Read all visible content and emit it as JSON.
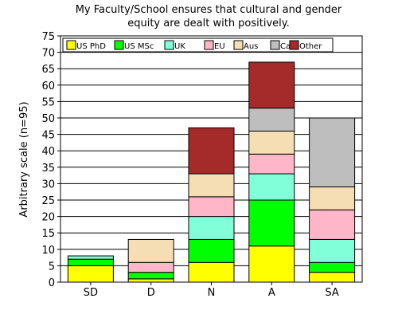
{
  "chart_data": {
    "type": "bar",
    "stacked": true,
    "title_lines": [
      "My Faculty/School ensures that cultural and gender",
      "equity are dealt with positively."
    ],
    "xlabel": "",
    "ylabel": "Arbitrary scale (n=95)",
    "ylim": [
      0,
      75
    ],
    "ytick_step": 5,
    "grid": true,
    "legend_position": "top-left",
    "categories": [
      "SD",
      "D",
      "N",
      "A",
      "SA"
    ],
    "series": [
      {
        "name": "US PhD",
        "color": "#ffff00",
        "values": [
          5,
          1,
          6,
          11,
          3
        ]
      },
      {
        "name": "US MSc",
        "color": "#00ff00",
        "values": [
          2,
          2,
          7,
          14,
          3
        ]
      },
      {
        "name": "UK",
        "color": "#80ffd9",
        "values": [
          1,
          0,
          7,
          8,
          7
        ]
      },
      {
        "name": "EU",
        "color": "#ffb6c8",
        "values": [
          0,
          3,
          6,
          6,
          9
        ]
      },
      {
        "name": "Aus",
        "color": "#f5deb3",
        "values": [
          0,
          7,
          7,
          7,
          7
        ]
      },
      {
        "name": "Ca",
        "color": "#bebebe",
        "values": [
          0,
          0,
          0,
          7,
          21
        ]
      },
      {
        "name": "Other",
        "color": "#a52a2a",
        "values": [
          0,
          0,
          14,
          14,
          0
        ]
      }
    ]
  }
}
